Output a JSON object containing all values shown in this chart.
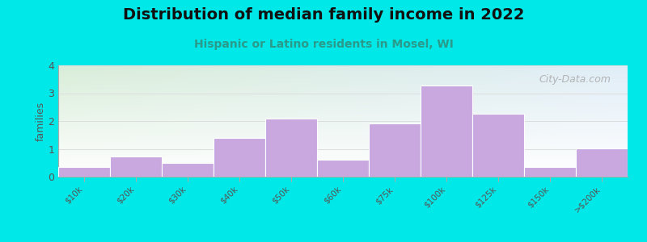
{
  "title": "Distribution of median family income in 2022",
  "subtitle": "Hispanic or Latino residents in Mosel, WI",
  "categories": [
    "$10k",
    "$20k",
    "$30k",
    "$40k",
    "$50k",
    "$60k",
    "$75k",
    "$100k",
    "$125k",
    "$150k",
    ">$200k"
  ],
  "values": [
    0.35,
    0.72,
    0.48,
    1.4,
    2.1,
    0.6,
    1.9,
    3.28,
    2.25,
    0.35,
    1.02
  ],
  "bar_color": "#c9a8e0",
  "bar_edge_color": "#ffffff",
  "background_outer": "#00e8e8",
  "plot_bg_topleft": "#ddeedd",
  "plot_bg_topright": "#ddeeff",
  "plot_bg_bottom": "#ffffff",
  "ylabel": "families",
  "ylim": [
    0,
    4
  ],
  "yticks": [
    0,
    1,
    2,
    3,
    4
  ],
  "title_fontsize": 14,
  "subtitle_fontsize": 10,
  "subtitle_color": "#2a9a8a",
  "watermark": "City-Data.com",
  "watermark_color": "#aaaaaa",
  "tick_label_color": "#555555",
  "axis_color": "#aaaaaa",
  "gridline_color": "#dddddd"
}
